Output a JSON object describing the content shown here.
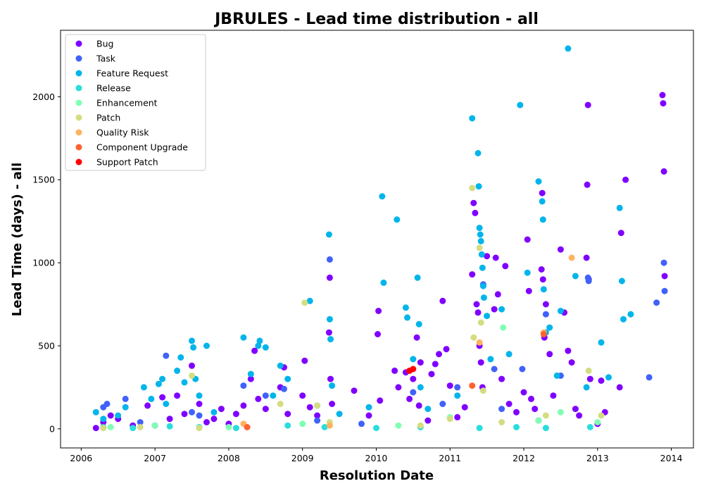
{
  "chart_data": {
    "type": "scatter",
    "title": "JBRULES - Lead time distribution - all",
    "xlabel": "Resolution Date",
    "ylabel": "Lead Time (days) - all",
    "xlim": [
      2005.72,
      2014.3
    ],
    "ylim": [
      -115,
      2400
    ],
    "xticks": [
      2006,
      2007,
      2008,
      2009,
      2010,
      2011,
      2012,
      2013,
      2014
    ],
    "yticks": [
      0,
      500,
      1000,
      1500,
      2000
    ],
    "grid": false,
    "legend_position": "top-left",
    "series": [
      {
        "name": "Bug",
        "color": "#8000ff",
        "points": [
          [
            2006.2,
            5
          ],
          [
            2006.3,
            40
          ],
          [
            2006.4,
            80
          ],
          [
            2006.5,
            60
          ],
          [
            2006.7,
            20
          ],
          [
            2006.9,
            140
          ],
          [
            2007.0,
            20
          ],
          [
            2007.1,
            190
          ],
          [
            2007.2,
            60
          ],
          [
            2007.3,
            200
          ],
          [
            2007.4,
            90
          ],
          [
            2007.5,
            380
          ],
          [
            2007.6,
            150
          ],
          [
            2007.7,
            40
          ],
          [
            2007.8,
            60
          ],
          [
            2007.9,
            120
          ],
          [
            2008.0,
            30
          ],
          [
            2008.1,
            90
          ],
          [
            2008.2,
            140
          ],
          [
            2008.3,
            300
          ],
          [
            2008.35,
            470
          ],
          [
            2008.4,
            180
          ],
          [
            2008.5,
            120
          ],
          [
            2008.7,
            250
          ],
          [
            2008.75,
            370
          ],
          [
            2008.8,
            90
          ],
          [
            2009.0,
            200
          ],
          [
            2009.03,
            410
          ],
          [
            2009.1,
            130
          ],
          [
            2009.2,
            80
          ],
          [
            2009.36,
            580
          ],
          [
            2009.37,
            910
          ],
          [
            2009.38,
            300
          ],
          [
            2009.4,
            150
          ],
          [
            2009.7,
            230
          ],
          [
            2009.9,
            80
          ],
          [
            2010.02,
            570
          ],
          [
            2010.03,
            710
          ],
          [
            2010.05,
            170
          ],
          [
            2010.25,
            350
          ],
          [
            2010.3,
            250
          ],
          [
            2010.4,
            340
          ],
          [
            2010.45,
            180
          ],
          [
            2010.5,
            300
          ],
          [
            2010.55,
            550
          ],
          [
            2010.58,
            140
          ],
          [
            2010.6,
            400
          ],
          [
            2010.7,
            50
          ],
          [
            2010.75,
            330
          ],
          [
            2010.8,
            390
          ],
          [
            2010.85,
            450
          ],
          [
            2010.9,
            770
          ],
          [
            2010.95,
            480
          ],
          [
            2011.0,
            260
          ],
          [
            2011.1,
            70
          ],
          [
            2011.2,
            130
          ],
          [
            2011.3,
            930
          ],
          [
            2011.32,
            1360
          ],
          [
            2011.34,
            1300
          ],
          [
            2011.36,
            750
          ],
          [
            2011.38,
            700
          ],
          [
            2011.4,
            500
          ],
          [
            2011.42,
            400
          ],
          [
            2011.44,
            250
          ],
          [
            2011.5,
            1040
          ],
          [
            2011.6,
            720
          ],
          [
            2011.62,
            1030
          ],
          [
            2011.65,
            810
          ],
          [
            2011.7,
            300
          ],
          [
            2011.75,
            980
          ],
          [
            2011.8,
            150
          ],
          [
            2011.9,
            100
          ],
          [
            2012.0,
            220
          ],
          [
            2012.05,
            1140
          ],
          [
            2012.07,
            830
          ],
          [
            2012.1,
            180
          ],
          [
            2012.15,
            120
          ],
          [
            2012.2,
            50
          ],
          [
            2012.24,
            960
          ],
          [
            2012.25,
            1420
          ],
          [
            2012.26,
            900
          ],
          [
            2012.28,
            550
          ],
          [
            2012.3,
            750
          ],
          [
            2012.35,
            450
          ],
          [
            2012.4,
            200
          ],
          [
            2012.5,
            1080
          ],
          [
            2012.55,
            700
          ],
          [
            2012.6,
            470
          ],
          [
            2012.65,
            400
          ],
          [
            2012.7,
            120
          ],
          [
            2012.75,
            80
          ],
          [
            2012.85,
            1030
          ],
          [
            2012.86,
            1470
          ],
          [
            2012.87,
            1950
          ],
          [
            2012.88,
            900
          ],
          [
            2012.9,
            300
          ],
          [
            2013.0,
            30
          ],
          [
            2013.05,
            290
          ],
          [
            2013.1,
            100
          ],
          [
            2013.3,
            250
          ],
          [
            2013.32,
            1180
          ],
          [
            2013.38,
            1500
          ],
          [
            2013.88,
            2010
          ],
          [
            2013.89,
            1960
          ],
          [
            2013.9,
            1550
          ],
          [
            2013.91,
            920
          ]
        ]
      },
      {
        "name": "Task",
        "color": "#4062fa",
        "points": [
          [
            2006.3,
            130
          ],
          [
            2006.35,
            150
          ],
          [
            2006.6,
            180
          ],
          [
            2006.8,
            40
          ],
          [
            2007.15,
            440
          ],
          [
            2007.5,
            100
          ],
          [
            2007.6,
            80
          ],
          [
            2008.2,
            260
          ],
          [
            2008.5,
            200
          ],
          [
            2008.75,
            240
          ],
          [
            2009.2,
            50
          ],
          [
            2009.37,
            1020
          ],
          [
            2009.8,
            30
          ],
          [
            2010.5,
            220
          ],
          [
            2010.9,
            150
          ],
          [
            2011.1,
            250
          ],
          [
            2011.45,
            870
          ],
          [
            2011.6,
            360
          ],
          [
            2011.7,
            120
          ],
          [
            2011.98,
            360
          ],
          [
            2012.3,
            690
          ],
          [
            2012.5,
            320
          ],
          [
            2012.87,
            910
          ],
          [
            2012.88,
            890
          ],
          [
            2013.7,
            310
          ],
          [
            2013.8,
            760
          ],
          [
            2013.9,
            1000
          ],
          [
            2013.91,
            830
          ]
        ]
      },
      {
        "name": "Feature Request",
        "color": "#00b5eb",
        "points": [
          [
            2006.2,
            100
          ],
          [
            2006.3,
            60
          ],
          [
            2006.5,
            80
          ],
          [
            2006.6,
            130
          ],
          [
            2006.85,
            250
          ],
          [
            2006.95,
            180
          ],
          [
            2007.05,
            270
          ],
          [
            2007.1,
            300
          ],
          [
            2007.15,
            150
          ],
          [
            2007.3,
            350
          ],
          [
            2007.35,
            430
          ],
          [
            2007.4,
            280
          ],
          [
            2007.5,
            530
          ],
          [
            2007.52,
            490
          ],
          [
            2007.55,
            300
          ],
          [
            2007.6,
            200
          ],
          [
            2007.7,
            500
          ],
          [
            2007.8,
            100
          ],
          [
            2008.2,
            550
          ],
          [
            2008.3,
            330
          ],
          [
            2008.4,
            500
          ],
          [
            2008.42,
            530
          ],
          [
            2008.5,
            490
          ],
          [
            2008.6,
            200
          ],
          [
            2008.7,
            380
          ],
          [
            2008.8,
            300
          ],
          [
            2009.1,
            770
          ],
          [
            2009.2,
            140
          ],
          [
            2009.36,
            1170
          ],
          [
            2009.37,
            660
          ],
          [
            2009.38,
            540
          ],
          [
            2009.4,
            260
          ],
          [
            2009.5,
            90
          ],
          [
            2009.9,
            130
          ],
          [
            2010.08,
            1400
          ],
          [
            2010.1,
            880
          ],
          [
            2010.28,
            1260
          ],
          [
            2010.4,
            730
          ],
          [
            2010.42,
            670
          ],
          [
            2010.5,
            420
          ],
          [
            2010.56,
            910
          ],
          [
            2010.58,
            630
          ],
          [
            2010.6,
            250
          ],
          [
            2010.7,
            120
          ],
          [
            2011.1,
            200
          ],
          [
            2011.3,
            1870
          ],
          [
            2011.38,
            1660
          ],
          [
            2011.39,
            1460
          ],
          [
            2011.4,
            1210
          ],
          [
            2011.41,
            1170
          ],
          [
            2011.42,
            1130
          ],
          [
            2011.43,
            1050
          ],
          [
            2011.44,
            970
          ],
          [
            2011.45,
            860
          ],
          [
            2011.46,
            790
          ],
          [
            2011.5,
            680
          ],
          [
            2011.55,
            420
          ],
          [
            2011.7,
            720
          ],
          [
            2011.8,
            450
          ],
          [
            2011.95,
            1950
          ],
          [
            2012.05,
            940
          ],
          [
            2012.2,
            1490
          ],
          [
            2012.25,
            1370
          ],
          [
            2012.26,
            1260
          ],
          [
            2012.27,
            840
          ],
          [
            2012.3,
            580
          ],
          [
            2012.35,
            610
          ],
          [
            2012.45,
            320
          ],
          [
            2012.5,
            710
          ],
          [
            2012.6,
            2290
          ],
          [
            2012.7,
            920
          ],
          [
            2012.85,
            250
          ],
          [
            2013.05,
            520
          ],
          [
            2013.15,
            310
          ],
          [
            2013.3,
            1330
          ],
          [
            2013.33,
            890
          ],
          [
            2013.35,
            660
          ],
          [
            2013.45,
            690
          ]
        ]
      },
      {
        "name": "Release",
        "color": "#2adddd",
        "points": [
          [
            2006.3,
            10
          ],
          [
            2006.7,
            5
          ],
          [
            2007.2,
            15
          ],
          [
            2007.6,
            10
          ],
          [
            2008.1,
            5
          ],
          [
            2008.8,
            20
          ],
          [
            2009.3,
            10
          ],
          [
            2010.0,
            5
          ],
          [
            2010.6,
            10
          ],
          [
            2011.4,
            5
          ],
          [
            2011.9,
            10
          ],
          [
            2012.3,
            5
          ],
          [
            2012.9,
            10
          ]
        ]
      },
      {
        "name": "Enhancement",
        "color": "#80ffb4",
        "points": [
          [
            2006.4,
            10
          ],
          [
            2007.0,
            20
          ],
          [
            2008.0,
            10
          ],
          [
            2009.0,
            30
          ],
          [
            2010.3,
            20
          ],
          [
            2011.0,
            70
          ],
          [
            2011.72,
            610
          ],
          [
            2012.2,
            50
          ],
          [
            2012.5,
            100
          ],
          [
            2013.0,
            40
          ]
        ]
      },
      {
        "name": "Patch",
        "color": "#d4dd80",
        "points": [
          [
            2006.3,
            5
          ],
          [
            2006.8,
            10
          ],
          [
            2007.5,
            320
          ],
          [
            2007.6,
            5
          ],
          [
            2008.7,
            150
          ],
          [
            2009.03,
            760
          ],
          [
            2009.2,
            140
          ],
          [
            2009.37,
            40
          ],
          [
            2010.6,
            20
          ],
          [
            2011.0,
            60
          ],
          [
            2011.3,
            1450
          ],
          [
            2011.32,
            550
          ],
          [
            2011.4,
            1090
          ],
          [
            2011.42,
            640
          ],
          [
            2011.45,
            230
          ],
          [
            2011.7,
            40
          ],
          [
            2012.3,
            80
          ],
          [
            2012.88,
            350
          ],
          [
            2013.05,
            80
          ]
        ]
      },
      {
        "name": "Quality Risk",
        "color": "#ffb360",
        "points": [
          [
            2008.2,
            30
          ],
          [
            2009.37,
            20
          ],
          [
            2011.4,
            520
          ],
          [
            2012.27,
            580
          ],
          [
            2012.65,
            1030
          ]
        ]
      },
      {
        "name": "Component  Upgrade",
        "color": "#ff6230",
        "points": [
          [
            2008.25,
            10
          ],
          [
            2011.3,
            260
          ],
          [
            2012.27,
            570
          ]
        ]
      },
      {
        "name": "Support Patch",
        "color": "#ff0000",
        "points": [
          [
            2010.45,
            350
          ],
          [
            2010.5,
            360
          ]
        ]
      }
    ]
  }
}
